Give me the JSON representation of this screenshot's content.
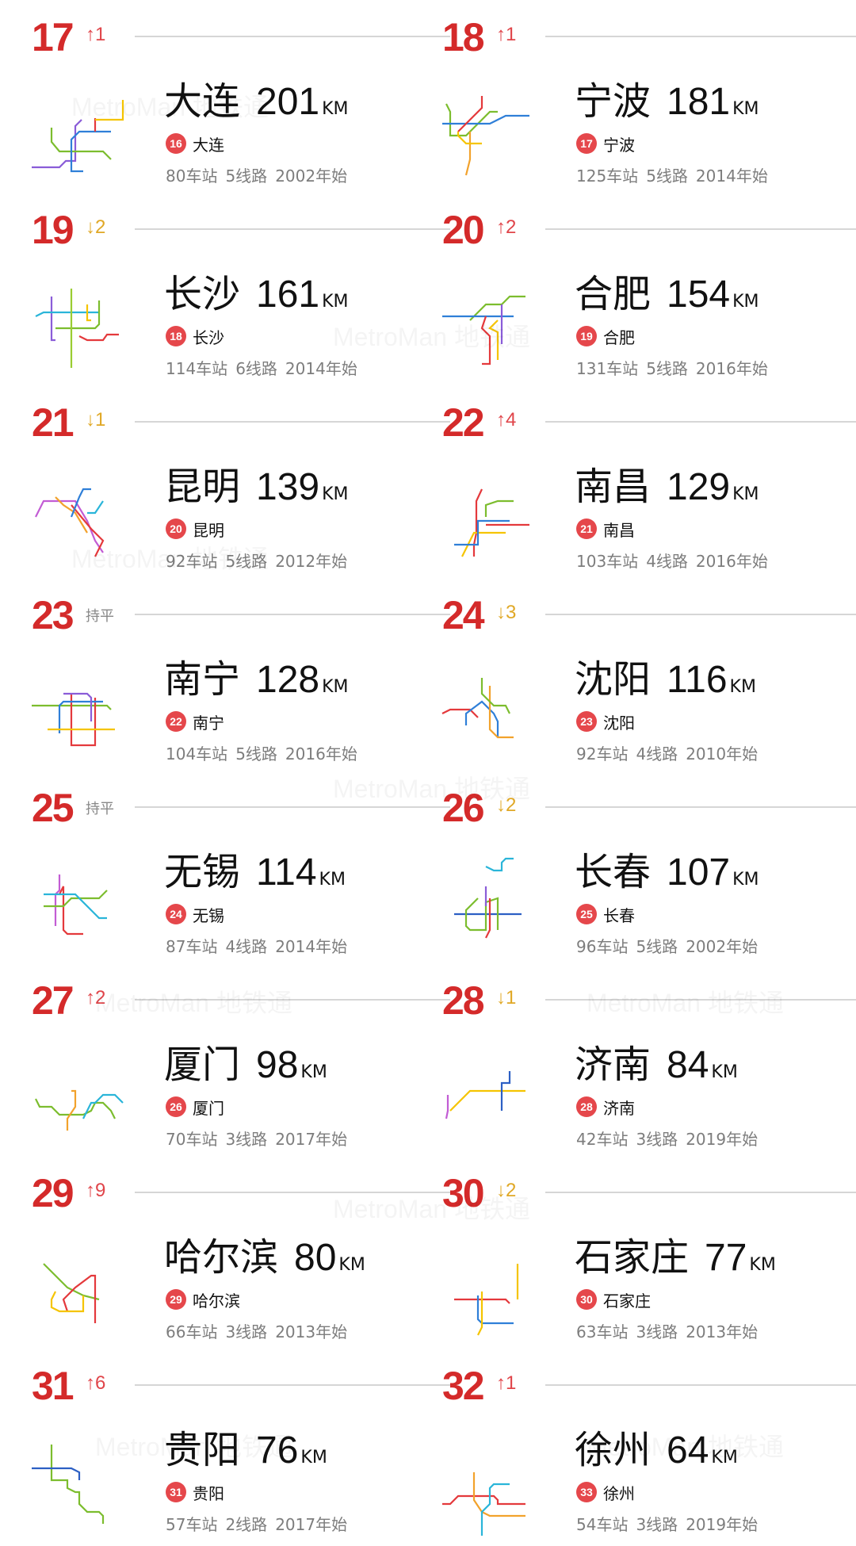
{
  "watermark": "MetroMan 地铁通",
  "unit": "KM",
  "colors": {
    "rank": "#d42a2a",
    "up": "#e0454a",
    "down": "#e0a826",
    "flat": "#888888",
    "badge": "#e5474b"
  },
  "palette": {
    "red": "#e4393c",
    "blue": "#2f7fd8",
    "green": "#7cbd2e",
    "yellow": "#f5c400",
    "purple": "#8a5cd8",
    "orange": "#f2a22c",
    "cyan": "#2ab5d9",
    "magenta": "#c25cd4",
    "navy": "#2c5fc4",
    "lime": "#9acd32"
  },
  "entries": [
    {
      "rank": "17",
      "trend": "up",
      "change": "↑1",
      "city": "大连",
      "length": "201",
      "badge": "16",
      "stations": "80车站",
      "lines": "5线路",
      "since": "2002年始",
      "map_lines": [
        "purple",
        "green",
        "blue",
        "red",
        "yellow"
      ]
    },
    {
      "rank": "18",
      "trend": "up",
      "change": "↑1",
      "city": "宁波",
      "length": "181",
      "badge": "17",
      "stations": "125车站",
      "lines": "5线路",
      "since": "2014年始",
      "map_lines": [
        "green",
        "blue",
        "red",
        "orange",
        "yellow"
      ]
    },
    {
      "rank": "19",
      "trend": "down",
      "change": "↓2",
      "city": "长沙",
      "length": "161",
      "badge": "18",
      "stations": "114车站",
      "lines": "6线路",
      "since": "2014年始",
      "map_lines": [
        "purple",
        "red",
        "cyan",
        "green",
        "yellow",
        "lime"
      ]
    },
    {
      "rank": "20",
      "trend": "up",
      "change": "↑2",
      "city": "合肥",
      "length": "154",
      "badge": "19",
      "stations": "131车站",
      "lines": "5线路",
      "since": "2016年始",
      "map_lines": [
        "green",
        "blue",
        "red",
        "yellow",
        "purple"
      ]
    },
    {
      "rank": "21",
      "trend": "down",
      "change": "↓1",
      "city": "昆明",
      "length": "139",
      "badge": "20",
      "stations": "92车站",
      "lines": "5线路",
      "since": "2012年始",
      "map_lines": [
        "magenta",
        "red",
        "orange",
        "blue",
        "cyan"
      ]
    },
    {
      "rank": "22",
      "trend": "up",
      "change": "↑4",
      "city": "南昌",
      "length": "129",
      "badge": "21",
      "stations": "103车站",
      "lines": "4线路",
      "since": "2016年始",
      "map_lines": [
        "red",
        "green",
        "yellow",
        "blue"
      ]
    },
    {
      "rank": "23",
      "trend": "flat",
      "change": "持平",
      "city": "南宁",
      "length": "128",
      "badge": "22",
      "stations": "104车站",
      "lines": "5线路",
      "since": "2016年始",
      "map_lines": [
        "green",
        "red",
        "blue",
        "yellow",
        "purple"
      ]
    },
    {
      "rank": "24",
      "trend": "down",
      "change": "↓3",
      "city": "沈阳",
      "length": "116",
      "badge": "23",
      "stations": "92车站",
      "lines": "4线路",
      "since": "2010年始",
      "map_lines": [
        "red",
        "blue",
        "orange",
        "green"
      ]
    },
    {
      "rank": "25",
      "trend": "flat",
      "change": "持平",
      "city": "无锡",
      "length": "114",
      "badge": "24",
      "stations": "87车站",
      "lines": "4线路",
      "since": "2014年始",
      "map_lines": [
        "magenta",
        "red",
        "green",
        "cyan"
      ]
    },
    {
      "rank": "26",
      "trend": "down",
      "change": "↓2",
      "city": "长春",
      "length": "107",
      "badge": "25",
      "stations": "96车站",
      "lines": "5线路",
      "since": "2002年始",
      "map_lines": [
        "navy",
        "green",
        "red",
        "cyan",
        "purple"
      ]
    },
    {
      "rank": "27",
      "trend": "up",
      "change": "↑2",
      "city": "厦门",
      "length": "98",
      "badge": "26",
      "stations": "70车站",
      "lines": "3线路",
      "since": "2017年始",
      "map_lines": [
        "green",
        "orange",
        "cyan"
      ]
    },
    {
      "rank": "28",
      "trend": "down",
      "change": "↓1",
      "city": "济南",
      "length": "84",
      "badge": "28",
      "stations": "42车站",
      "lines": "3线路",
      "since": "2019年始",
      "map_lines": [
        "magenta",
        "yellow",
        "navy"
      ]
    },
    {
      "rank": "29",
      "trend": "up",
      "change": "↑9",
      "city": "哈尔滨",
      "length": "80",
      "badge": "29",
      "stations": "66车站",
      "lines": "3线路",
      "since": "2013年始",
      "map_lines": [
        "green",
        "red",
        "yellow"
      ]
    },
    {
      "rank": "30",
      "trend": "down",
      "change": "↓2",
      "city": "石家庄",
      "length": "77",
      "badge": "30",
      "stations": "63车站",
      "lines": "3线路",
      "since": "2013年始",
      "map_lines": [
        "red",
        "blue",
        "yellow"
      ]
    },
    {
      "rank": "31",
      "trend": "up",
      "change": "↑6",
      "city": "贵阳",
      "length": "76",
      "badge": "31",
      "stations": "57车站",
      "lines": "2线路",
      "since": "2017年始",
      "map_lines": [
        "green",
        "navy"
      ]
    },
    {
      "rank": "32",
      "trend": "up",
      "change": "↑1",
      "city": "徐州",
      "length": "64",
      "badge": "33",
      "stations": "54车站",
      "lines": "3线路",
      "since": "2019年始",
      "map_lines": [
        "red",
        "orange",
        "cyan"
      ]
    }
  ]
}
